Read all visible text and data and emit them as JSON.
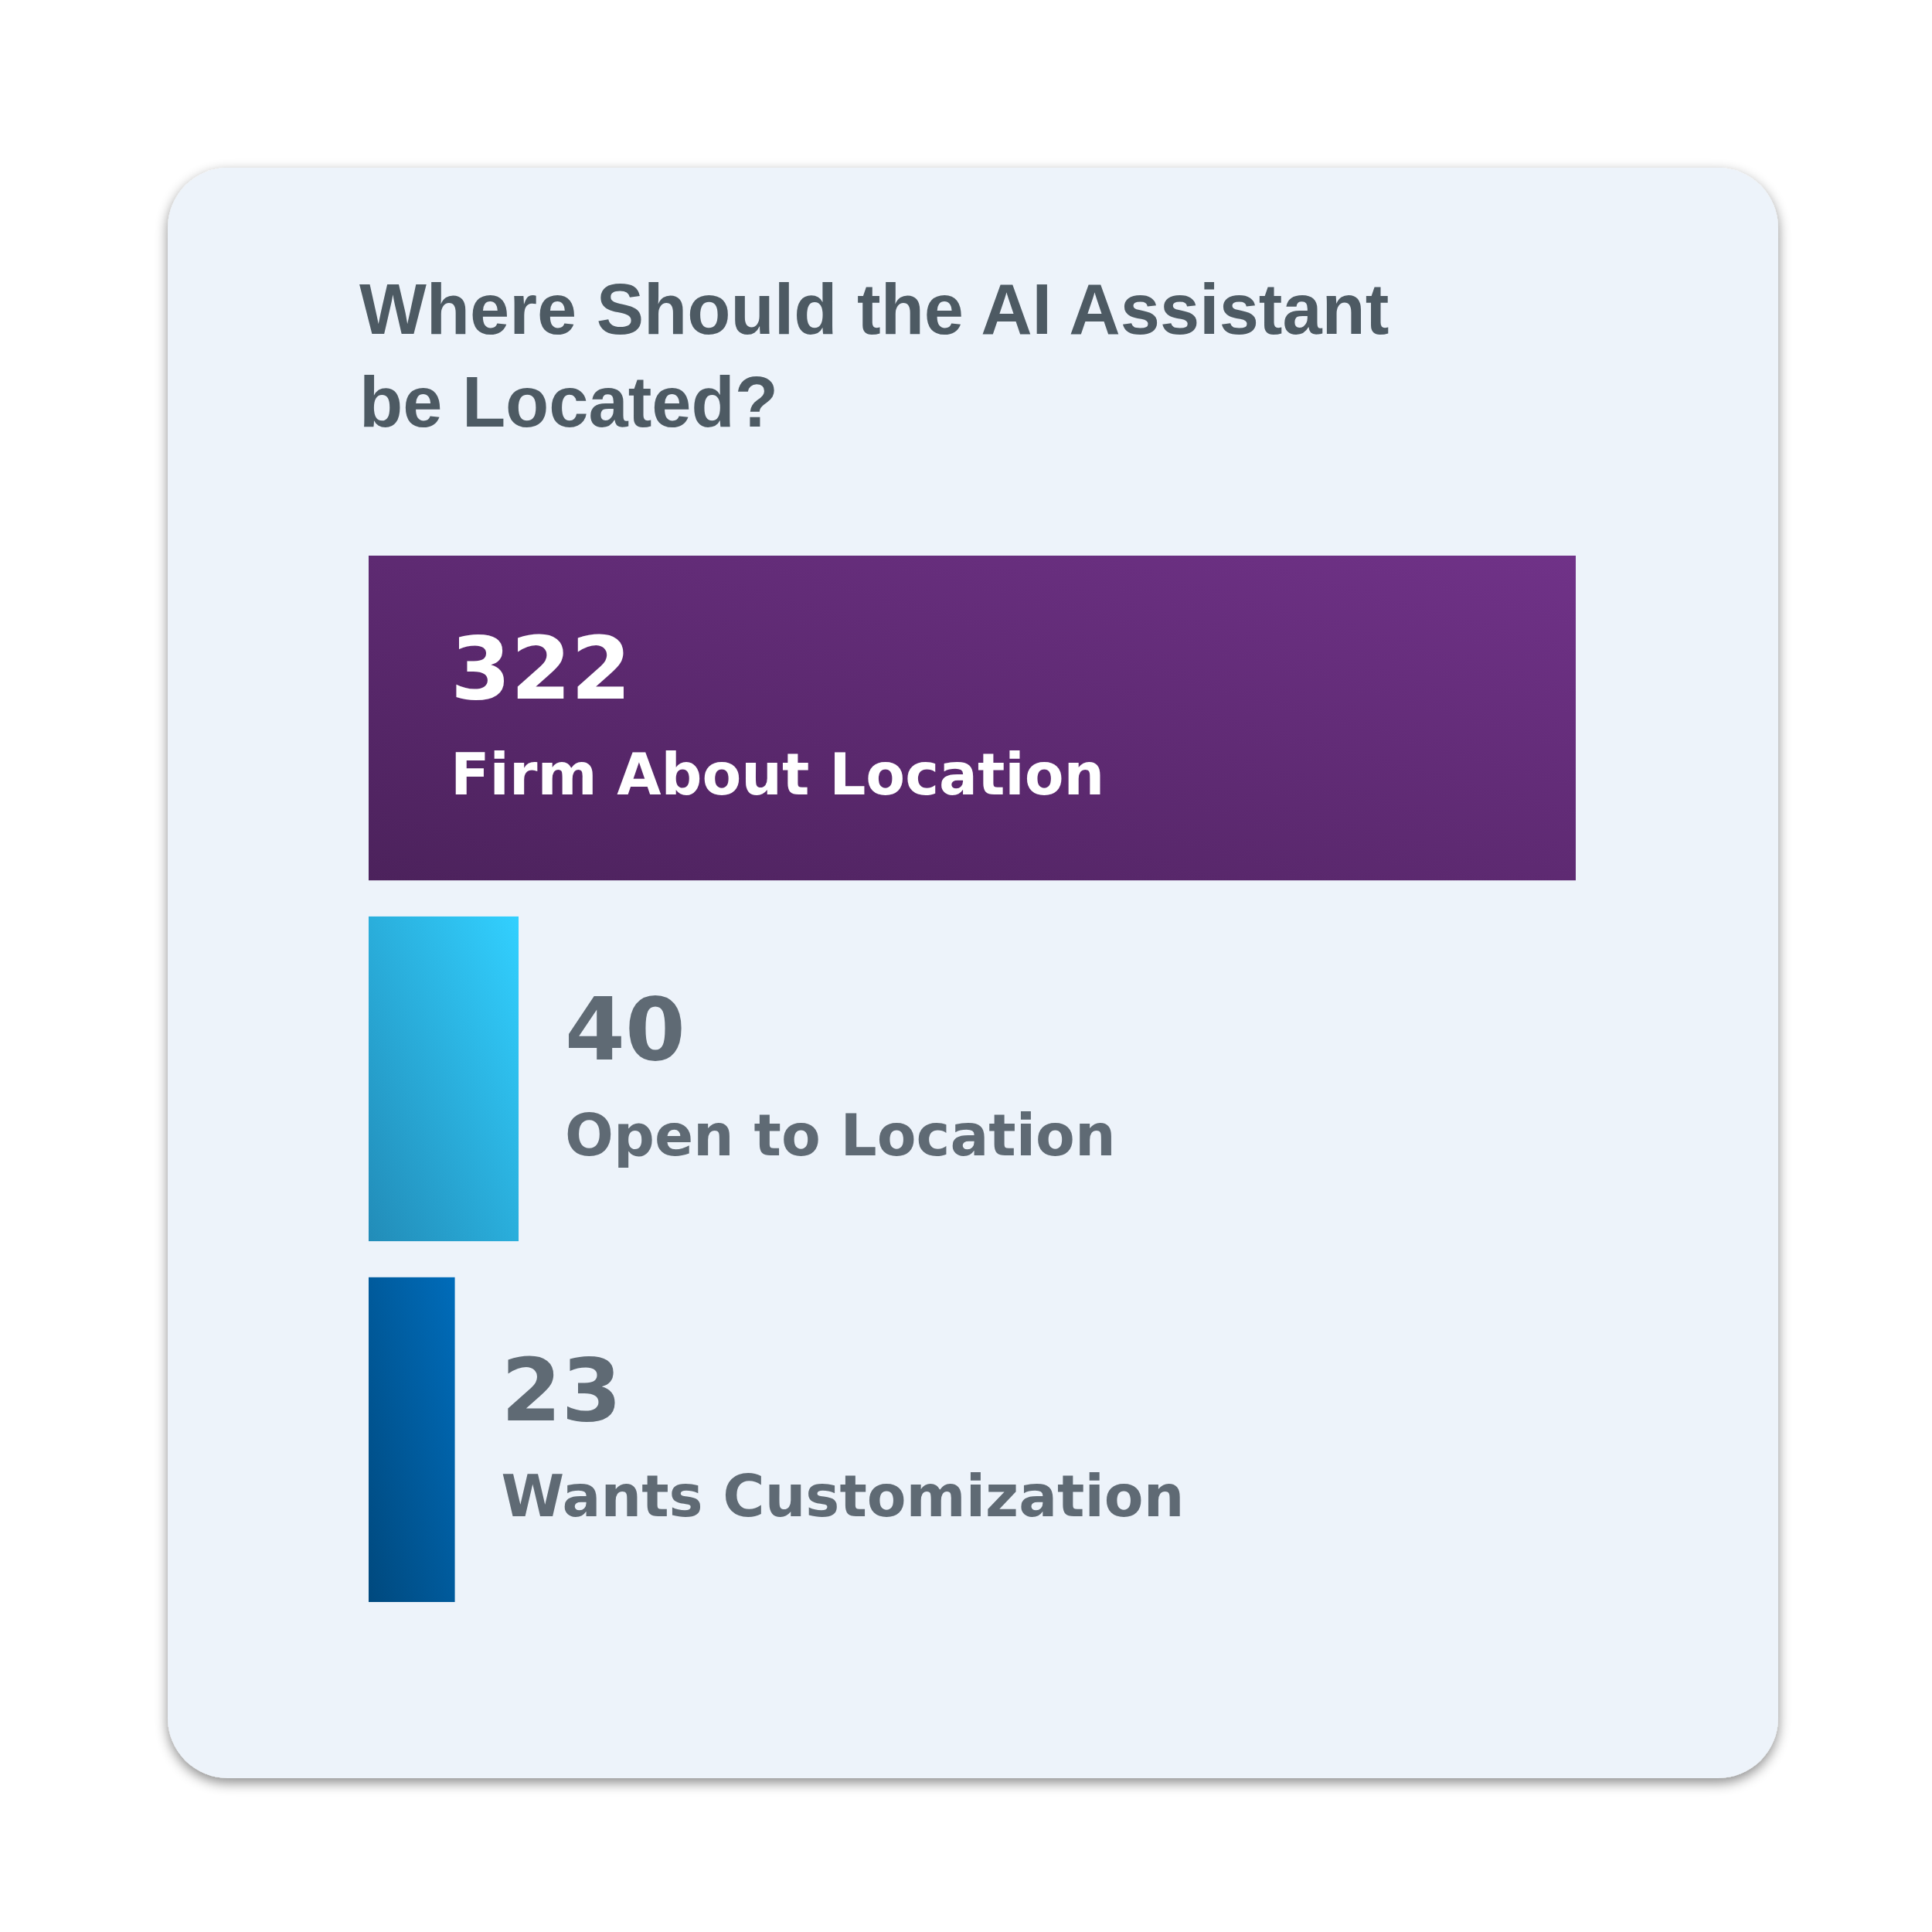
{
  "chart_data": {
    "type": "bar",
    "orientation": "horizontal",
    "title": "Where Should the AI Assistant be Located?",
    "categories": [
      "Firm About Location",
      "Open to Location",
      "Wants Customization"
    ],
    "values": [
      322,
      40,
      23
    ],
    "colors": [
      "#5e2a72",
      "#2aaee4",
      "#005a9c"
    ],
    "data_labels": true
  }
}
